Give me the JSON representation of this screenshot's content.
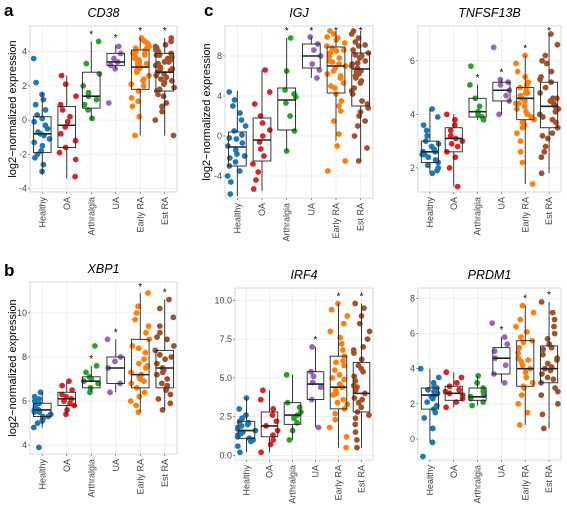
{
  "figure": {
    "panel_labels": [
      "a",
      "b",
      "c"
    ],
    "group_colors": [
      "#1f77b4",
      "#d62728",
      "#2ca02c",
      "#9467bd",
      "#ff7f0e",
      "#a0522d"
    ]
  },
  "chart_data": [
    {
      "type": "box",
      "title": "CD38",
      "panel_label": "a",
      "ylabel": "log2−normalized expression",
      "categories": [
        "Healthy",
        "OA",
        "Arthralgia",
        "UA",
        "Early RA",
        "Est RA"
      ],
      "ylim": [
        -4.2,
        5.5
      ],
      "yticks": [
        -4,
        -2,
        0,
        2,
        4
      ],
      "significant": [
        false,
        false,
        true,
        true,
        true,
        true
      ],
      "boxes": [
        {
          "q1": -1.9,
          "median": -0.8,
          "q3": 0.2,
          "whisker_low": -3.2,
          "whisker_high": 1.6
        },
        {
          "q1": -1.6,
          "median": -0.3,
          "q3": 0.8,
          "whisker_low": -3.4,
          "whisker_high": 2.6
        },
        {
          "q1": 0.7,
          "median": 1.4,
          "q3": 2.8,
          "whisker_low": 0.0,
          "whisker_high": 4.6
        },
        {
          "q1": 3.2,
          "median": 3.4,
          "q3": 3.9,
          "whisker_low": 3.0,
          "whisker_high": 4.4
        },
        {
          "q1": 1.8,
          "median": 3.1,
          "q3": 4.1,
          "whisker_low": -0.9,
          "whisker_high": 4.8
        },
        {
          "q1": 1.7,
          "median": 2.8,
          "q3": 3.9,
          "whisker_low": -0.9,
          "whisker_high": 4.8
        }
      ],
      "points": [
        [
          -3.0,
          -2.6,
          -2.2,
          -2.0,
          -1.8,
          -1.5,
          -1.3,
          -1.1,
          -0.9,
          -0.8,
          -0.7,
          -0.5,
          -0.3,
          -0.1,
          0.1,
          0.3,
          0.6,
          0.9,
          1.2,
          1.5,
          2.2,
          3.6
        ],
        [
          -3.3,
          -2.3,
          -1.9,
          -1.6,
          -1.2,
          -0.8,
          -0.4,
          -0.1,
          0.2,
          0.6,
          0.9,
          1.4,
          2.1,
          2.6
        ],
        [
          0.1,
          0.6,
          0.9,
          1.2,
          1.4,
          1.6,
          2.0,
          2.7,
          3.3,
          4.6
        ],
        [
          3.0,
          3.2,
          3.4,
          3.6,
          3.9,
          4.3,
          1.0
        ],
        [
          -0.9,
          0.2,
          0.8,
          1.3,
          1.7,
          2.0,
          2.3,
          2.6,
          2.8,
          3.0,
          3.1,
          3.2,
          3.3,
          3.4,
          3.5,
          3.6,
          3.7,
          3.8,
          3.9,
          4.0,
          4.1,
          4.2,
          4.3,
          4.4,
          4.5,
          4.6,
          4.7,
          4.8,
          2.1,
          2.9,
          3.3,
          3.6,
          1.1,
          2.4,
          3.9,
          4.2
        ],
        [
          -0.9,
          0.0,
          0.5,
          1.0,
          1.4,
          1.7,
          1.9,
          2.1,
          2.3,
          2.5,
          2.7,
          2.8,
          2.9,
          3.0,
          3.1,
          3.2,
          3.3,
          3.4,
          3.5,
          3.6,
          3.7,
          3.8,
          3.9,
          4.0,
          4.1,
          4.2,
          4.3,
          4.4,
          4.6,
          4.8,
          1.5,
          2.2,
          2.6,
          3.0,
          3.4,
          3.8,
          0.8,
          1.8,
          2.4,
          3.5
        ]
      ]
    },
    {
      "type": "box",
      "title": "IGJ",
      "panel_label": "c",
      "ylabel": "log2−normalized expression",
      "categories": [
        "Healthy",
        "OA",
        "Arthralgia",
        "UA",
        "Early RA",
        "Est RA"
      ],
      "ylim": [
        -6.2,
        11
      ],
      "yticks": [
        -4,
        0,
        4,
        8
      ],
      "significant": [
        false,
        false,
        true,
        true,
        true,
        true
      ],
      "boxes": [
        {
          "q1": -3.0,
          "median": -1.1,
          "q3": 0.4,
          "whisker_low": -6.0,
          "whisker_high": 4.5
        },
        {
          "q1": -2.5,
          "median": -0.4,
          "q3": 1.8,
          "whisker_low": -5.5,
          "whisker_high": 6.6
        },
        {
          "q1": 0.6,
          "median": 3.6,
          "q3": 4.8,
          "whisker_low": -1.5,
          "whisker_high": 9.8
        },
        {
          "q1": 6.8,
          "median": 8.0,
          "q3": 9.2,
          "whisker_low": 5.8,
          "whisker_high": 9.9
        },
        {
          "q1": 4.3,
          "median": 7.0,
          "q3": 8.9,
          "whisker_low": -0.5,
          "whisker_high": 10.5
        },
        {
          "q1": 3.0,
          "median": 6.7,
          "q3": 8.3,
          "whisker_low": -2.5,
          "whisker_high": 10.5
        }
      ],
      "points": [
        [
          -5.8,
          -4.6,
          -4.0,
          -3.5,
          -3.0,
          -2.6,
          -2.2,
          -1.8,
          -1.4,
          -1.0,
          -0.7,
          -0.3,
          0.1,
          0.5,
          1.0,
          1.6,
          2.3,
          3.0,
          3.6,
          4.4,
          -2.0,
          -0.2
        ],
        [
          -5.3,
          -4.4,
          -3.6,
          -2.8,
          -2.0,
          -1.3,
          -0.6,
          0.0,
          0.6,
          1.3,
          2.0,
          3.2,
          4.4,
          6.6
        ],
        [
          -1.5,
          0.5,
          2.0,
          3.3,
          3.9,
          4.2,
          4.6,
          6.5,
          9.8
        ],
        [
          5.8,
          6.6,
          7.2,
          8.0,
          8.6,
          9.2,
          9.9
        ],
        [
          -3.5,
          -2.5,
          -1.0,
          0.2,
          1.5,
          2.5,
          3.5,
          4.2,
          4.8,
          5.3,
          5.8,
          6.2,
          6.5,
          6.8,
          7.0,
          7.2,
          7.5,
          7.8,
          8.0,
          8.3,
          8.5,
          8.8,
          9.0,
          9.3,
          9.6,
          9.9,
          10.2,
          10.5,
          3.0,
          5.0,
          6.0,
          7.4,
          8.6,
          9.8
        ],
        [
          -2.5,
          -1.2,
          0.0,
          1.0,
          2.0,
          2.8,
          3.5,
          4.2,
          4.8,
          5.3,
          5.8,
          6.2,
          6.5,
          6.8,
          7.0,
          7.2,
          7.5,
          7.8,
          8.0,
          8.3,
          8.6,
          9.0,
          9.4,
          9.8,
          10.2,
          10.5,
          1.5,
          3.2,
          4.5,
          5.5,
          6.4,
          7.3,
          8.1,
          9.1,
          2.4,
          6.0
        ]
      ]
    },
    {
      "type": "box",
      "title": "TNFSF13B",
      "panel_label": "",
      "ylabel": "",
      "categories": [
        "Healthy",
        "OA",
        "Arthralgia",
        "UA",
        "Early RA",
        "Est RA"
      ],
      "ylim": [
        1.1,
        7.3
      ],
      "yticks": [
        2,
        4,
        6
      ],
      "significant": [
        false,
        false,
        true,
        true,
        true,
        true
      ],
      "boxes": [
        {
          "q1": 2.2,
          "median": 2.6,
          "q3": 3.0,
          "whisker_low": 1.8,
          "whisker_high": 4.2
        },
        {
          "q1": 2.6,
          "median": 3.1,
          "q3": 3.5,
          "whisker_low": 1.3,
          "whisker_high": 4.0
        },
        {
          "q1": 3.9,
          "median": 4.1,
          "q3": 4.6,
          "whisker_low": 3.8,
          "whisker_high": 5.1
        },
        {
          "q1": 4.5,
          "median": 4.9,
          "q3": 5.2,
          "whisker_low": 4.0,
          "whisker_high": 5.3
        },
        {
          "q1": 3.8,
          "median": 4.6,
          "q3": 5.0,
          "whisker_low": 1.4,
          "whisker_high": 6.2
        },
        {
          "q1": 3.5,
          "median": 4.3,
          "q3": 5.2,
          "whisker_low": 1.8,
          "whisker_high": 7.0
        }
      ],
      "points": [
        [
          1.8,
          1.9,
          2.0,
          2.1,
          2.2,
          2.3,
          2.4,
          2.5,
          2.5,
          2.6,
          2.7,
          2.8,
          2.9,
          3.0,
          3.2,
          3.4,
          3.6,
          3.9,
          4.2,
          2.6
        ],
        [
          1.3,
          2.0,
          2.4,
          2.6,
          2.8,
          3.0,
          3.1,
          3.2,
          3.4,
          3.6,
          3.8,
          4.0,
          2.9
        ],
        [
          3.8,
          3.9,
          4.0,
          4.1,
          4.3,
          4.6,
          5.1,
          5.8
        ],
        [
          4.0,
          4.5,
          4.7,
          4.9,
          5.1,
          5.2,
          5.3,
          6.5
        ],
        [
          1.4,
          2.2,
          2.6,
          3.0,
          3.3,
          3.5,
          3.7,
          3.8,
          3.9,
          4.0,
          4.1,
          4.2,
          4.3,
          4.4,
          4.5,
          4.6,
          4.7,
          4.8,
          4.9,
          5.0,
          5.1,
          5.2,
          5.4,
          5.6,
          5.9,
          6.2,
          3.6,
          4.4,
          4.8
        ],
        [
          1.8,
          2.4,
          2.8,
          3.1,
          3.3,
          3.5,
          3.7,
          3.9,
          4.0,
          4.1,
          4.2,
          4.3,
          4.4,
          4.5,
          4.6,
          4.8,
          5.0,
          5.2,
          5.4,
          5.6,
          5.9,
          6.2,
          6.6,
          7.0,
          3.2,
          3.8,
          4.6,
          5.3,
          2.6,
          6.0
        ]
      ]
    },
    {
      "type": "box",
      "title": "XBP1",
      "panel_label": "b",
      "ylabel": "log2−normalized expression",
      "categories": [
        "Healthy",
        "OA",
        "Arthralgia",
        "UA",
        "Early RA",
        "Est RA"
      ],
      "ylim": [
        3.6,
        11.4
      ],
      "yticks": [
        4,
        6,
        8,
        10
      ],
      "significant": [
        false,
        false,
        true,
        true,
        true,
        true
      ],
      "boxes": [
        {
          "q1": 5.3,
          "median": 5.6,
          "q3": 5.9,
          "whisker_low": 4.8,
          "whisker_high": 6.4
        },
        {
          "q1": 5.8,
          "median": 6.1,
          "q3": 6.4,
          "whisker_low": 5.4,
          "whisker_high": 6.9
        },
        {
          "q1": 6.6,
          "median": 6.9,
          "q3": 7.1,
          "whisker_low": 6.4,
          "whisker_high": 7.6
        },
        {
          "q1": 6.8,
          "median": 7.5,
          "q3": 8.0,
          "whisker_low": 6.4,
          "whisker_high": 8.8
        },
        {
          "q1": 6.6,
          "median": 7.2,
          "q3": 8.8,
          "whisker_low": 5.5,
          "whisker_high": 10.9
        },
        {
          "q1": 6.6,
          "median": 7.5,
          "q3": 8.3,
          "whisker_low": 5.6,
          "whisker_high": 10.6
        }
      ],
      "points": [
        [
          3.9,
          4.8,
          5.0,
          5.1,
          5.2,
          5.3,
          5.4,
          5.5,
          5.5,
          5.6,
          5.7,
          5.8,
          5.9,
          6.0,
          6.1,
          6.2,
          6.4,
          5.6,
          5.3
        ],
        [
          5.4,
          5.6,
          5.8,
          5.9,
          6.0,
          6.1,
          6.2,
          6.3,
          6.5,
          6.7,
          6.9
        ],
        [
          6.4,
          6.6,
          6.8,
          6.9,
          7.0,
          7.1,
          7.3,
          7.6,
          8.5
        ],
        [
          6.4,
          6.8,
          7.5,
          7.8,
          8.0,
          8.8
        ],
        [
          5.5,
          5.8,
          6.0,
          6.2,
          6.4,
          6.6,
          6.8,
          7.0,
          7.1,
          7.2,
          7.3,
          7.5,
          7.7,
          7.9,
          8.2,
          8.5,
          8.8,
          9.1,
          9.4,
          9.7,
          10.0,
          10.3,
          10.9,
          6.9,
          7.6,
          8.4
        ],
        [
          5.6,
          5.9,
          6.1,
          6.3,
          6.5,
          6.6,
          6.8,
          7.0,
          7.2,
          7.4,
          7.5,
          7.7,
          7.9,
          8.1,
          8.3,
          8.5,
          8.8,
          9.1,
          9.4,
          9.8,
          10.2,
          10.6,
          6.7,
          7.3,
          8.0,
          8.9
        ]
      ]
    },
    {
      "type": "box",
      "title": "IRF4",
      "panel_label": "",
      "ylabel": "",
      "categories": [
        "Healthy",
        "OA",
        "Arthralgia",
        "UA",
        "Early RA",
        "Est RA"
      ],
      "ylim": [
        -0.3,
        10.8
      ],
      "yticks": [
        0.0,
        2.5,
        5.0,
        7.5,
        10.0
      ],
      "ytick_labels": [
        "0.0",
        "2.5",
        "5.0",
        "7.5",
        "10.0"
      ],
      "significant": [
        false,
        false,
        false,
        true,
        true,
        true
      ],
      "boxes": [
        {
          "q1": 1.1,
          "median": 1.6,
          "q3": 2.2,
          "whisker_low": 0.2,
          "whisker_high": 3.7
        },
        {
          "q1": 1.2,
          "median": 1.9,
          "q3": 2.8,
          "whisker_low": 0.2,
          "whisker_high": 4.2
        },
        {
          "q1": 2.0,
          "median": 2.6,
          "q3": 3.4,
          "whisker_low": 1.0,
          "whisker_high": 5.2
        },
        {
          "q1": 3.6,
          "median": 4.6,
          "q3": 5.4,
          "whisker_low": 1.8,
          "whisker_high": 7.0
        },
        {
          "q1": 3.0,
          "median": 4.4,
          "q3": 6.4,
          "whisker_low": 0.5,
          "whisker_high": 9.8
        },
        {
          "q1": 2.8,
          "median": 4.0,
          "q3": 6.0,
          "whisker_low": 0.5,
          "whisker_high": 9.8
        }
      ],
      "points": [
        [
          0.2,
          0.6,
          0.9,
          1.0,
          1.1,
          1.2,
          1.3,
          1.4,
          1.5,
          1.6,
          1.7,
          1.8,
          1.9,
          2.0,
          2.1,
          2.2,
          2.4,
          2.6,
          3.0,
          3.7
        ],
        [
          0.2,
          0.7,
          1.0,
          1.3,
          1.6,
          1.9,
          2.2,
          2.6,
          3.0,
          3.6,
          4.2
        ],
        [
          1.0,
          1.6,
          2.1,
          2.4,
          2.6,
          2.8,
          3.1,
          3.4,
          5.2
        ],
        [
          1.8,
          3.6,
          4.4,
          4.7,
          5.1,
          5.4,
          7.0
        ],
        [
          0.5,
          1.2,
          1.8,
          2.3,
          2.7,
          3.0,
          3.3,
          3.6,
          3.9,
          4.2,
          4.4,
          4.6,
          4.9,
          5.2,
          5.5,
          5.8,
          6.1,
          6.4,
          6.8,
          7.2,
          7.6,
          8.0,
          8.5,
          9.0,
          9.4,
          9.8,
          3.4,
          4.0,
          5.0,
          6.0
        ],
        [
          0.5,
          1.0,
          1.5,
          2.0,
          2.4,
          2.8,
          3.1,
          3.4,
          3.7,
          4.0,
          4.2,
          4.5,
          4.8,
          5.1,
          5.4,
          5.8,
          6.2,
          6.6,
          7.0,
          7.5,
          8.0,
          8.5,
          9.0,
          9.5,
          9.8,
          2.6,
          3.6,
          4.4,
          5.6,
          6.8
        ]
      ]
    },
    {
      "type": "box",
      "title": "PRDM1",
      "panel_label": "",
      "ylabel": "",
      "categories": [
        "Healthy",
        "OA",
        "Arthralgia",
        "UA",
        "Early RA",
        "Est RA"
      ],
      "ylim": [
        -1.2,
        8.6
      ],
      "yticks": [
        0,
        2,
        4,
        6,
        8
      ],
      "significant": [
        false,
        false,
        false,
        true,
        true,
        true
      ],
      "boxes": [
        {
          "q1": 1.7,
          "median": 2.5,
          "q3": 2.9,
          "whisker_low": -0.2,
          "whisker_high": 4.0
        },
        {
          "q1": 2.2,
          "median": 2.6,
          "q3": 3.0,
          "whisker_low": 1.8,
          "whisker_high": 3.8
        },
        {
          "q1": 2.2,
          "median": 2.4,
          "q3": 2.9,
          "whisker_low": 1.9,
          "whisker_high": 3.6
        },
        {
          "q1": 3.7,
          "median": 4.6,
          "q3": 5.2,
          "whisker_low": 3.2,
          "whisker_high": 5.8
        },
        {
          "q1": 3.0,
          "median": 4.0,
          "q3": 5.6,
          "whisker_low": 0.8,
          "whisker_high": 7.6
        },
        {
          "q1": 3.2,
          "median": 4.0,
          "q3": 5.3,
          "whisker_low": 0.6,
          "whisker_high": 7.8
        }
      ],
      "points": [
        [
          -1.0,
          -0.2,
          0.6,
          1.2,
          1.5,
          1.7,
          1.9,
          2.1,
          2.3,
          2.4,
          2.5,
          2.6,
          2.7,
          2.8,
          2.9,
          3.0,
          3.2,
          3.5,
          4.0
        ],
        [
          1.8,
          2.1,
          2.3,
          2.5,
          2.6,
          2.7,
          2.8,
          3.0,
          3.2,
          3.5,
          3.8
        ],
        [
          1.9,
          2.1,
          2.3,
          2.4,
          2.5,
          2.7,
          2.9,
          3.2,
          3.6
        ],
        [
          3.2,
          3.7,
          4.2,
          4.6,
          5.0,
          5.4,
          5.8,
          6.6
        ],
        [
          0.8,
          1.5,
          2.0,
          2.5,
          2.9,
          3.2,
          3.5,
          3.8,
          4.0,
          4.2,
          4.4,
          4.6,
          4.9,
          5.2,
          5.5,
          5.8,
          6.1,
          6.4,
          6.8,
          7.2,
          7.6,
          3.0,
          4.5,
          5.6
        ],
        [
          0.6,
          1.4,
          2.0,
          2.5,
          2.9,
          3.2,
          3.5,
          3.7,
          3.9,
          4.1,
          4.3,
          4.5,
          4.8,
          5.1,
          5.4,
          5.7,
          6.0,
          6.4,
          6.8,
          7.2,
          7.8,
          3.4,
          4.0,
          4.6,
          5.2,
          2.7
        ]
      ]
    }
  ]
}
